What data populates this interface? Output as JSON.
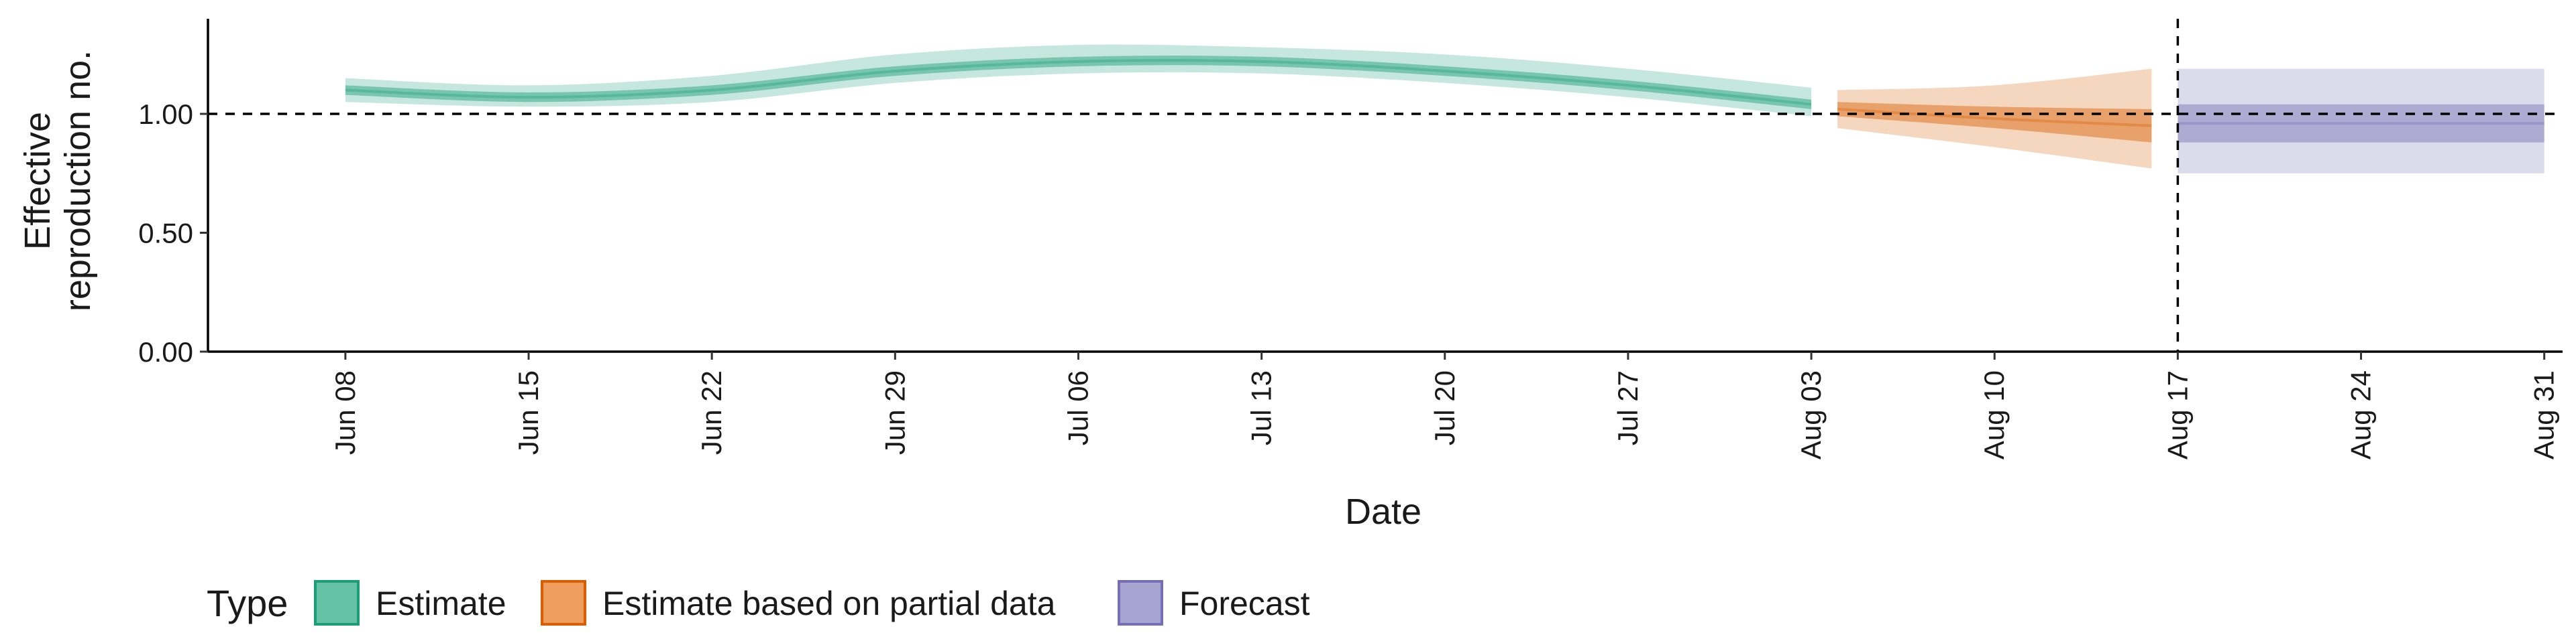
{
  "chart_data": {
    "type": "area",
    "xlabel": "Date",
    "ylabel_lines": [
      "Effective",
      "reproduction no."
    ],
    "ylim": [
      0,
      1.4
    ],
    "y_ticks": [
      {
        "value": 0.0,
        "label": "0.00"
      },
      {
        "value": 0.5,
        "label": "0.50"
      },
      {
        "value": 1.0,
        "label": "1.00"
      }
    ],
    "x_range": [
      -1.5,
      24.2
    ],
    "x_ticks": [
      {
        "day": 0,
        "label": "Jun 08"
      },
      {
        "day": 7,
        "label": "Jun 15"
      },
      {
        "day": 14,
        "label": "Jun 22"
      },
      {
        "day": 21,
        "label": "Jun 29"
      },
      {
        "day": 28,
        "label": "Jul 06"
      },
      {
        "day": 35,
        "label": "Jul 13"
      },
      {
        "day": 42,
        "label": "Jul 20"
      },
      {
        "day": 49,
        "label": "Jul 27"
      },
      {
        "day": 56,
        "label": "Aug 03"
      },
      {
        "day": 63,
        "label": "Aug 10"
      },
      {
        "day": 70,
        "label": "Aug 17"
      },
      {
        "day": 77,
        "label": "Aug 24"
      },
      {
        "day": 84,
        "label": "Aug 31"
      }
    ],
    "reference_hline": 1.0,
    "reference_vline_label": "Aug 17",
    "legend": {
      "title": "Type",
      "position": "bottom",
      "entries": [
        {
          "label": "Estimate",
          "fill": "#66c2a5",
          "border": "#1b9e77"
        },
        {
          "label": "Estimate based on partial data",
          "fill": "#ee9f60",
          "border": "#d95f02"
        },
        {
          "label": "Forecast",
          "fill": "#a8a3d0",
          "border": "#7570b3"
        }
      ]
    },
    "series": [
      {
        "name": "Estimate",
        "color": "#1b9e77",
        "points": [
          {
            "date": "Jun 08",
            "median": 1.1,
            "lower_50": 1.08,
            "upper_50": 1.12,
            "lower_90": 1.05,
            "upper_90": 1.15
          },
          {
            "date": "Jun 15",
            "median": 1.07,
            "lower_50": 1.05,
            "upper_50": 1.09,
            "lower_90": 1.03,
            "upper_90": 1.12
          },
          {
            "date": "Jun 22",
            "median": 1.1,
            "lower_50": 1.08,
            "upper_50": 1.12,
            "lower_90": 1.05,
            "upper_90": 1.16
          },
          {
            "date": "Jun 29",
            "median": 1.18,
            "lower_50": 1.16,
            "upper_50": 1.2,
            "lower_90": 1.13,
            "upper_90": 1.25
          },
          {
            "date": "Jul 06",
            "median": 1.22,
            "lower_50": 1.2,
            "upper_50": 1.24,
            "lower_90": 1.17,
            "upper_90": 1.29
          },
          {
            "date": "Jul 13",
            "median": 1.22,
            "lower_50": 1.2,
            "upper_50": 1.24,
            "lower_90": 1.17,
            "upper_90": 1.28
          },
          {
            "date": "Jul 20",
            "median": 1.18,
            "lower_50": 1.16,
            "upper_50": 1.2,
            "lower_90": 1.13,
            "upper_90": 1.25
          },
          {
            "date": "Jul 27",
            "median": 1.12,
            "lower_50": 1.1,
            "upper_50": 1.14,
            "lower_90": 1.07,
            "upper_90": 1.19
          },
          {
            "date": "Aug 03",
            "median": 1.04,
            "lower_50": 1.02,
            "upper_50": 1.06,
            "lower_90": 0.99,
            "upper_90": 1.11
          }
        ]
      },
      {
        "name": "Estimate based on partial data",
        "color": "#d95f02",
        "points": [
          {
            "date": "Aug 04",
            "median": 1.02,
            "lower_50": 0.99,
            "upper_50": 1.05,
            "lower_90": 0.94,
            "upper_90": 1.1
          },
          {
            "date": "Aug 10",
            "median": 0.98,
            "lower_50": 0.94,
            "upper_50": 1.03,
            "lower_90": 0.86,
            "upper_90": 1.12
          },
          {
            "date": "Aug 16",
            "median": 0.95,
            "lower_50": 0.88,
            "upper_50": 1.02,
            "lower_90": 0.77,
            "upper_90": 1.19
          }
        ]
      },
      {
        "name": "Forecast",
        "color": "#7570b3",
        "points": [
          {
            "date": "Aug 17",
            "median": 0.96,
            "lower_50": 0.88,
            "upper_50": 1.04,
            "lower_90": 0.75,
            "upper_90": 1.19
          },
          {
            "date": "Aug 31",
            "median": 0.96,
            "lower_50": 0.88,
            "upper_50": 1.04,
            "lower_90": 0.75,
            "upper_90": 1.19
          }
        ]
      }
    ]
  }
}
